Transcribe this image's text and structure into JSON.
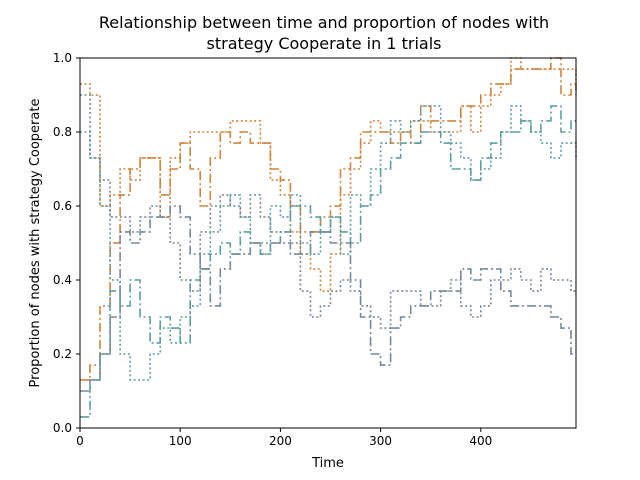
{
  "chart_data": {
    "type": "line",
    "title_line1": "Relationship between time and proportion of nodes with",
    "title_line2": "strategy Cooperate in 1 trials",
    "xlabel": "Time",
    "ylabel": "Proportion of nodes with strategy Cooperate",
    "xlim": [
      0,
      495
    ],
    "ylim": [
      0.0,
      1.0
    ],
    "x_ticks": [
      0,
      100,
      200,
      300,
      400
    ],
    "x_tick_labels": [
      "0",
      "100",
      "200",
      "300",
      "400"
    ],
    "y_ticks": [
      0.0,
      0.2,
      0.4,
      0.6,
      0.8,
      1.0
    ],
    "y_tick_labels": [
      "0.0",
      "0.2",
      "0.4",
      "0.6",
      "0.8",
      "1.0"
    ],
    "grid": false,
    "legend": "none",
    "colors": {
      "orange": "#cd853f",
      "teal": "#5f9ea0",
      "slate": "#778899"
    },
    "series": [
      {
        "color": "#cd853f",
        "dash": "dashdot",
        "x": [
          0,
          10,
          20,
          30,
          40,
          50,
          60,
          70,
          80,
          90,
          100,
          110,
          120,
          130,
          140,
          150,
          160,
          170,
          180,
          190,
          200,
          210,
          220,
          230,
          240,
          250,
          260,
          270,
          280,
          290,
          300,
          310,
          320,
          330,
          340,
          350,
          360,
          370,
          380,
          390,
          400,
          410,
          420,
          430,
          440,
          450,
          460,
          470,
          480,
          490,
          495
        ],
        "y": [
          0.13,
          0.17,
          0.33,
          0.5,
          0.63,
          0.7,
          0.73,
          0.73,
          0.63,
          0.7,
          0.77,
          0.7,
          0.6,
          0.73,
          0.8,
          0.77,
          0.8,
          0.77,
          0.77,
          0.7,
          0.67,
          0.6,
          0.53,
          0.53,
          0.57,
          0.6,
          0.7,
          0.73,
          0.8,
          0.8,
          0.8,
          0.77,
          0.8,
          0.77,
          0.87,
          0.83,
          0.83,
          0.83,
          0.87,
          0.87,
          0.9,
          0.93,
          0.93,
          0.97,
          0.97,
          0.97,
          0.97,
          1.0,
          0.9,
          0.93,
          0.9
        ]
      },
      {
        "color": "#cd853f",
        "dash": "dotted",
        "x": [
          0,
          10,
          20,
          30,
          40,
          50,
          60,
          70,
          80,
          90,
          100,
          110,
          120,
          130,
          140,
          150,
          160,
          170,
          180,
          190,
          200,
          210,
          220,
          230,
          240,
          250,
          260,
          270,
          280,
          290,
          300,
          310,
          320,
          330,
          340,
          350,
          360,
          370,
          380,
          390,
          400,
          410,
          420,
          430,
          440,
          450,
          460,
          470,
          480,
          490,
          495
        ],
        "y": [
          0.93,
          0.9,
          0.6,
          0.63,
          0.7,
          0.67,
          0.73,
          0.73,
          0.57,
          0.73,
          0.77,
          0.8,
          0.8,
          0.8,
          0.8,
          0.83,
          0.83,
          0.83,
          0.77,
          0.67,
          0.63,
          0.53,
          0.47,
          0.43,
          0.37,
          0.47,
          0.63,
          0.7,
          0.77,
          0.83,
          0.8,
          0.8,
          0.8,
          0.83,
          0.83,
          0.8,
          0.8,
          0.8,
          0.87,
          0.8,
          0.87,
          0.9,
          0.93,
          1.0,
          0.97,
          0.97,
          0.97,
          0.97,
          0.97,
          0.97,
          0.93
        ]
      },
      {
        "color": "#5f9ea0",
        "dash": "dashdot",
        "x": [
          0,
          10,
          20,
          30,
          40,
          50,
          60,
          70,
          80,
          90,
          100,
          110,
          120,
          130,
          140,
          150,
          160,
          170,
          180,
          190,
          200,
          210,
          220,
          230,
          240,
          250,
          260,
          270,
          280,
          290,
          300,
          310,
          320,
          330,
          340,
          350,
          360,
          370,
          380,
          390,
          400,
          410,
          420,
          430,
          440,
          450,
          460,
          470,
          480,
          490,
          495
        ],
        "y": [
          0.03,
          0.13,
          0.2,
          0.37,
          0.33,
          0.4,
          0.3,
          0.23,
          0.3,
          0.27,
          0.23,
          0.4,
          0.43,
          0.47,
          0.5,
          0.47,
          0.53,
          0.5,
          0.47,
          0.5,
          0.53,
          0.6,
          0.6,
          0.57,
          0.53,
          0.57,
          0.53,
          0.5,
          0.6,
          0.63,
          0.7,
          0.73,
          0.77,
          0.77,
          0.8,
          0.8,
          0.77,
          0.7,
          0.7,
          0.67,
          0.73,
          0.77,
          0.8,
          0.8,
          0.83,
          0.8,
          0.83,
          0.87,
          0.8,
          0.83,
          0.83
        ]
      },
      {
        "color": "#5f9ea0",
        "dash": "dotted",
        "x": [
          0,
          10,
          20,
          30,
          40,
          50,
          60,
          70,
          80,
          90,
          100,
          110,
          120,
          130,
          140,
          150,
          160,
          170,
          180,
          190,
          200,
          210,
          220,
          230,
          240,
          250,
          260,
          270,
          280,
          290,
          300,
          310,
          320,
          330,
          340,
          350,
          360,
          370,
          380,
          390,
          400,
          410,
          420,
          430,
          440,
          450,
          460,
          470,
          480,
          490,
          495
        ],
        "y": [
          0.8,
          0.73,
          0.6,
          0.4,
          0.2,
          0.13,
          0.13,
          0.2,
          0.27,
          0.23,
          0.3,
          0.33,
          0.47,
          0.53,
          0.6,
          0.63,
          0.57,
          0.5,
          0.47,
          0.6,
          0.57,
          0.63,
          0.5,
          0.47,
          0.53,
          0.57,
          0.47,
          0.63,
          0.6,
          0.7,
          0.77,
          0.83,
          0.8,
          0.83,
          0.87,
          0.87,
          0.8,
          0.77,
          0.73,
          0.67,
          0.7,
          0.73,
          0.8,
          0.87,
          0.83,
          0.8,
          0.77,
          0.73,
          0.77,
          0.77,
          0.73
        ]
      },
      {
        "color": "#778899",
        "dash": "dashdot",
        "x": [
          0,
          10,
          20,
          30,
          40,
          50,
          60,
          70,
          80,
          90,
          100,
          110,
          120,
          130,
          140,
          150,
          160,
          170,
          180,
          190,
          200,
          210,
          220,
          230,
          240,
          250,
          260,
          270,
          280,
          290,
          300,
          310,
          320,
          330,
          340,
          350,
          360,
          370,
          380,
          390,
          400,
          410,
          420,
          430,
          440,
          450,
          460,
          470,
          480,
          490,
          495
        ],
        "y": [
          0.1,
          0.13,
          0.2,
          0.3,
          0.53,
          0.5,
          0.53,
          0.57,
          0.57,
          0.6,
          0.57,
          0.47,
          0.43,
          0.33,
          0.43,
          0.47,
          0.47,
          0.5,
          0.5,
          0.5,
          0.5,
          0.47,
          0.47,
          0.53,
          0.53,
          0.5,
          0.5,
          0.4,
          0.3,
          0.2,
          0.17,
          0.27,
          0.3,
          0.33,
          0.33,
          0.37,
          0.37,
          0.37,
          0.43,
          0.4,
          0.43,
          0.43,
          0.37,
          0.33,
          0.33,
          0.33,
          0.33,
          0.3,
          0.27,
          0.2,
          0.2
        ]
      },
      {
        "color": "#778899",
        "dash": "dotted",
        "x": [
          0,
          10,
          20,
          30,
          40,
          50,
          60,
          70,
          80,
          90,
          100,
          110,
          120,
          130,
          140,
          150,
          160,
          170,
          180,
          190,
          200,
          210,
          220,
          230,
          240,
          250,
          260,
          270,
          280,
          290,
          300,
          310,
          320,
          330,
          340,
          350,
          360,
          370,
          380,
          390,
          400,
          410,
          420,
          430,
          440,
          450,
          460,
          470,
          480,
          490,
          495
        ],
        "y": [
          0.9,
          0.73,
          0.67,
          0.57,
          0.57,
          0.53,
          0.57,
          0.6,
          0.57,
          0.5,
          0.4,
          0.37,
          0.53,
          0.6,
          0.63,
          0.6,
          0.57,
          0.63,
          0.57,
          0.53,
          0.53,
          0.5,
          0.37,
          0.3,
          0.33,
          0.37,
          0.4,
          0.37,
          0.33,
          0.3,
          0.27,
          0.37,
          0.37,
          0.37,
          0.33,
          0.33,
          0.37,
          0.4,
          0.33,
          0.3,
          0.33,
          0.4,
          0.4,
          0.43,
          0.4,
          0.37,
          0.43,
          0.4,
          0.4,
          0.37,
          0.37
        ]
      }
    ]
  }
}
